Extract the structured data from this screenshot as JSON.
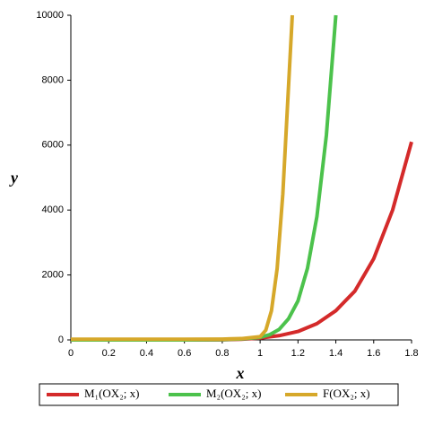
{
  "chart_data": {
    "type": "line",
    "xlabel": "x",
    "ylabel": "y",
    "xlim": [
      0,
      1.8
    ],
    "ylim": [
      0,
      10000
    ],
    "xticks": [
      0,
      0.2,
      0.4,
      0.6,
      0.8,
      1,
      1.2,
      1.4,
      1.6,
      1.8
    ],
    "yticks": [
      0,
      2000,
      4000,
      6000,
      8000,
      10000
    ],
    "grid": false,
    "legend": "bottom",
    "series": [
      {
        "name": "M₁(OX₂; x)",
        "color": "#d42a2a",
        "x": [
          0,
          0.2,
          0.4,
          0.6,
          0.8,
          0.9,
          1.0,
          1.1,
          1.2,
          1.3,
          1.4,
          1.5,
          1.6,
          1.7,
          1.8
        ],
        "values": [
          0,
          0,
          0,
          0,
          5,
          20,
          60,
          130,
          260,
          500,
          900,
          1500,
          2500,
          4000,
          6100
        ]
      },
      {
        "name": "M₂(OX₂; x)",
        "color": "#4cc24c",
        "x": [
          0,
          0.2,
          0.4,
          0.6,
          0.8,
          0.9,
          1.0,
          1.05,
          1.1,
          1.15,
          1.2,
          1.25,
          1.3,
          1.35,
          1.4
        ],
        "values": [
          0,
          0,
          0,
          0,
          10,
          30,
          80,
          160,
          320,
          650,
          1200,
          2200,
          3800,
          6300,
          10000
        ]
      },
      {
        "name": "F(OX₂; x)",
        "color": "#d6a82a",
        "x": [
          0,
          0.2,
          0.4,
          0.6,
          0.8,
          0.9,
          1.0,
          1.03,
          1.06,
          1.09,
          1.12,
          1.15,
          1.17
        ],
        "values": [
          20,
          20,
          20,
          20,
          25,
          40,
          100,
          300,
          900,
          2200,
          4500,
          7800,
          10000
        ]
      }
    ]
  }
}
